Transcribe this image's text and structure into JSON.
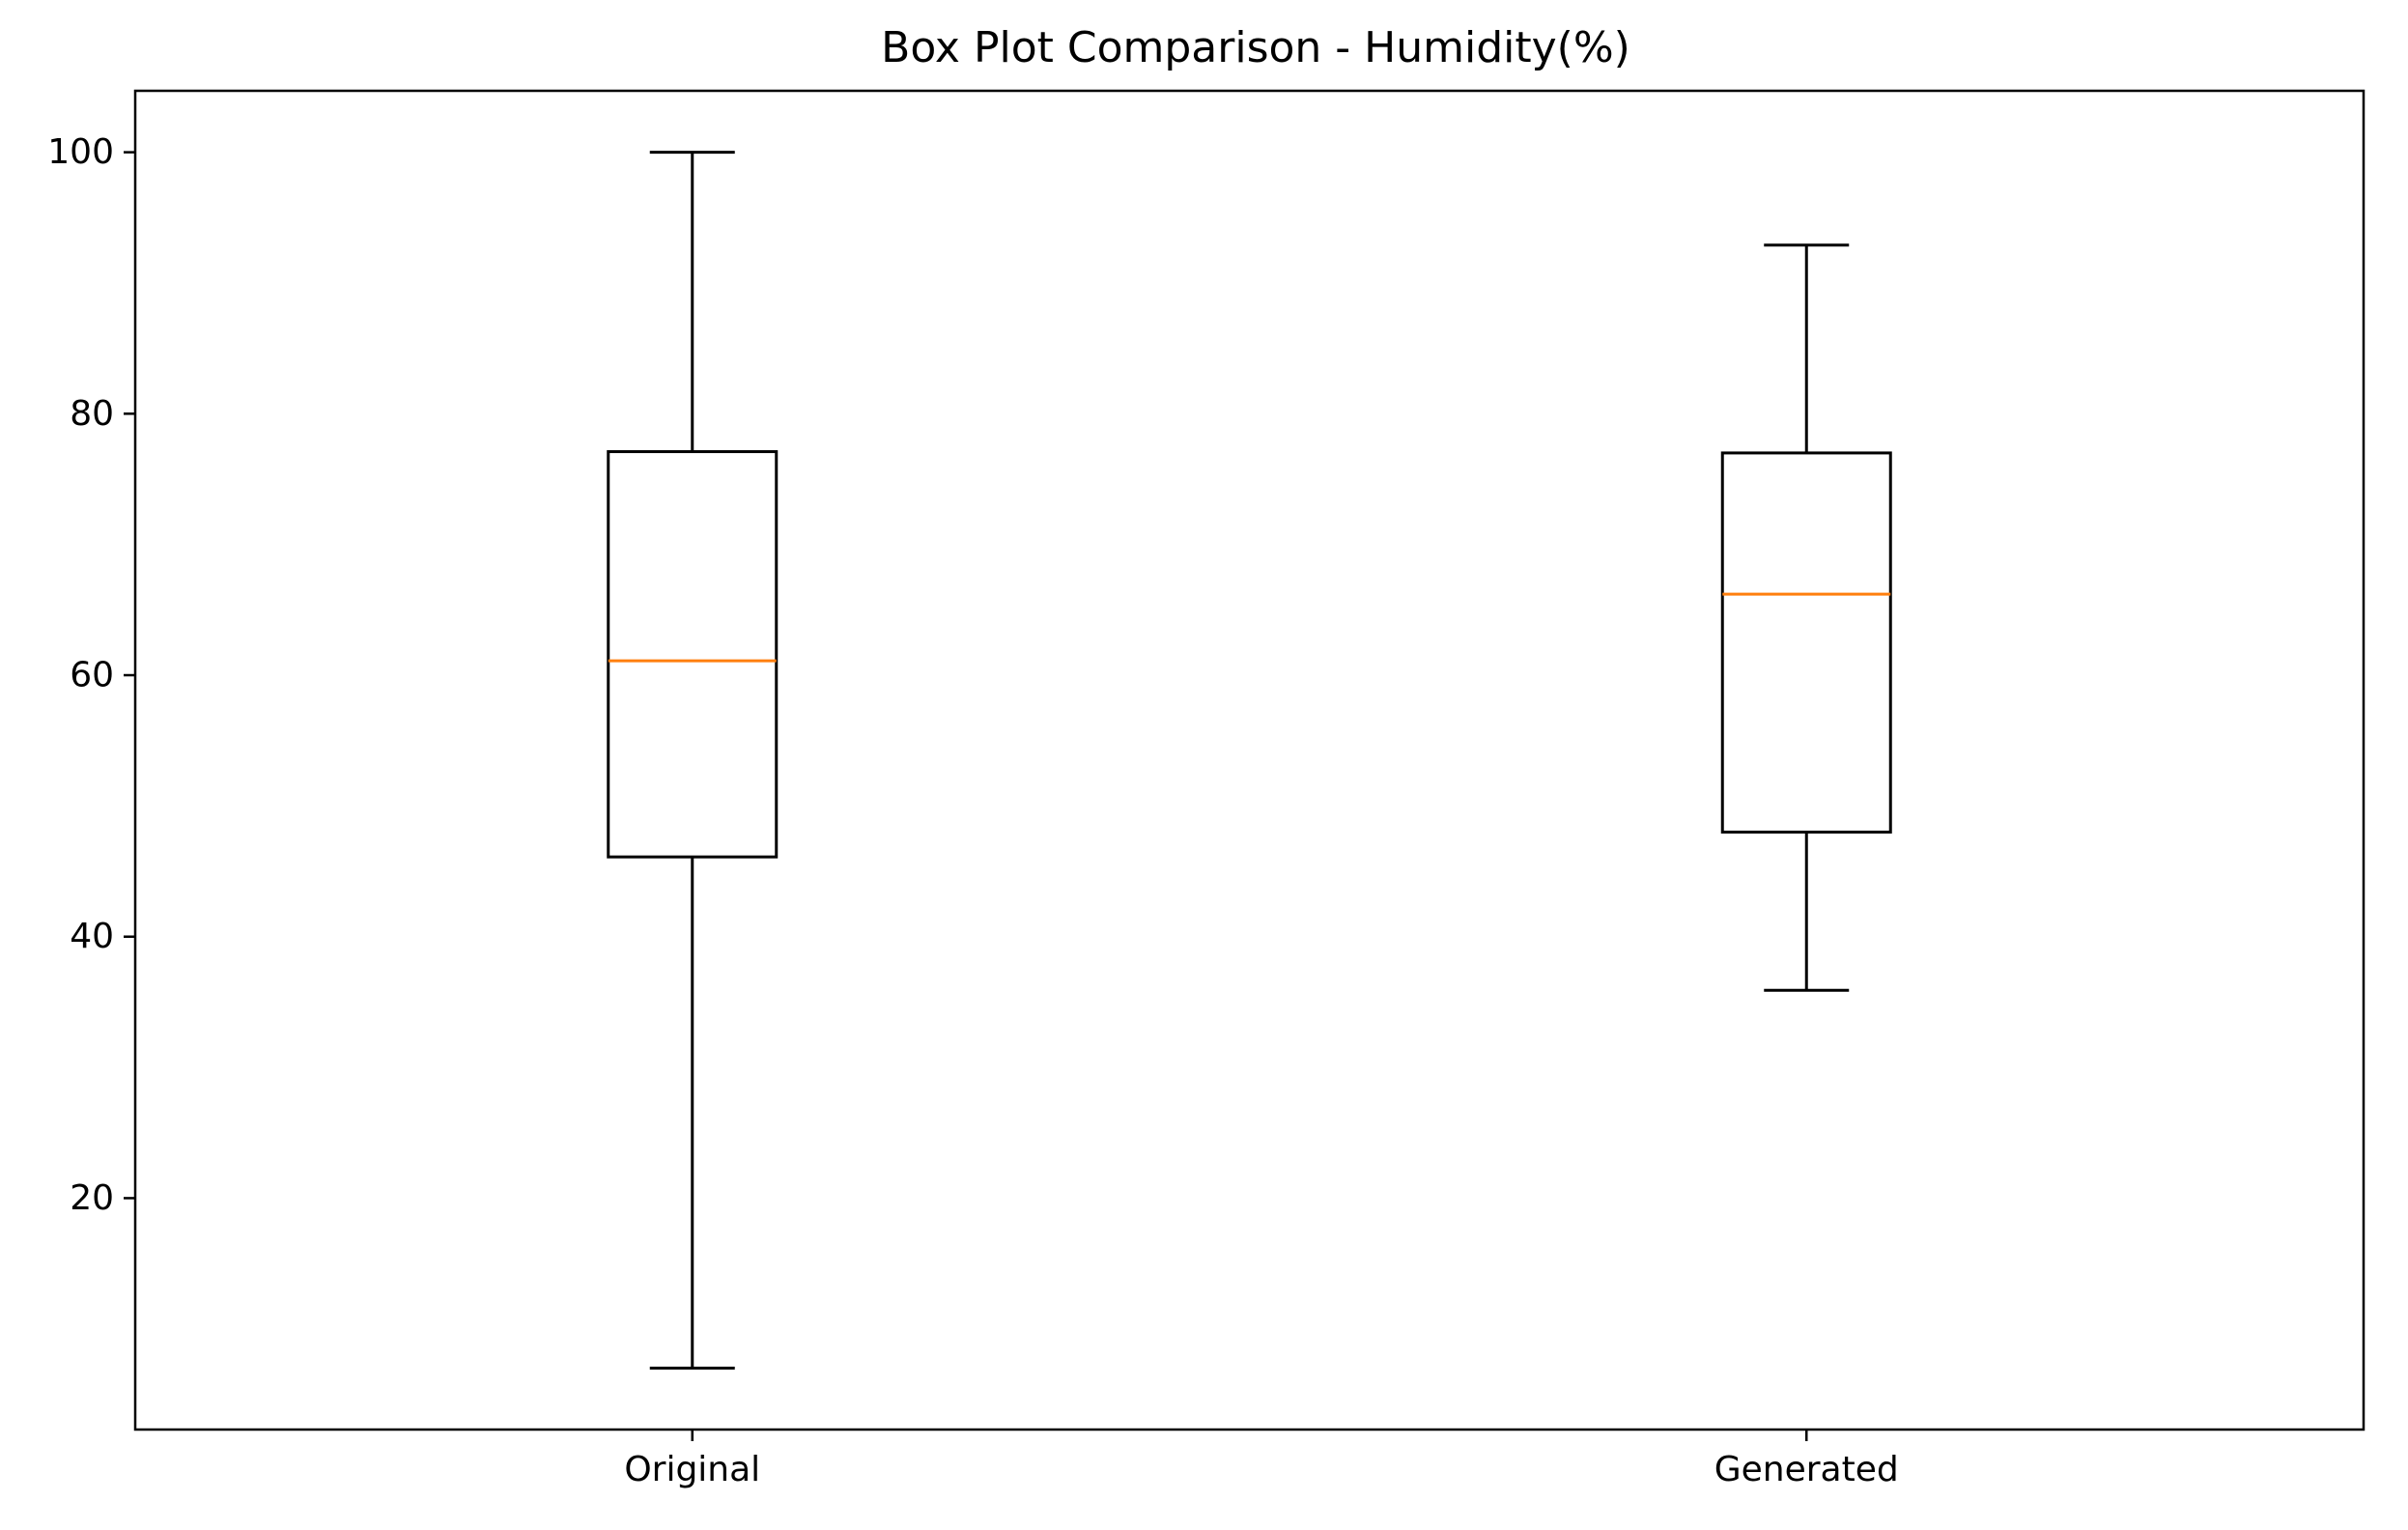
{
  "chart_data": {
    "type": "box",
    "title": "Box Plot Comparison - Humidity(%)",
    "xlabel": "",
    "ylabel": "",
    "categories": [
      "Original",
      "Generated"
    ],
    "ylim": [
      2.3,
      104.7
    ],
    "yticks": [
      20,
      40,
      60,
      80,
      100
    ],
    "grid": false,
    "boxes": [
      {
        "label": "Original",
        "whisker_low": 7,
        "q1": 46.1,
        "median": 61.1,
        "q3": 77.1,
        "whisker_high": 100
      },
      {
        "label": "Generated",
        "whisker_low": 35.9,
        "q1": 48,
        "median": 66.2,
        "q3": 77,
        "whisker_high": 92.9
      }
    ],
    "colors": {
      "box": "#000000",
      "median": "#ff7f0e",
      "axes": "#000000",
      "background": "#ffffff"
    }
  }
}
